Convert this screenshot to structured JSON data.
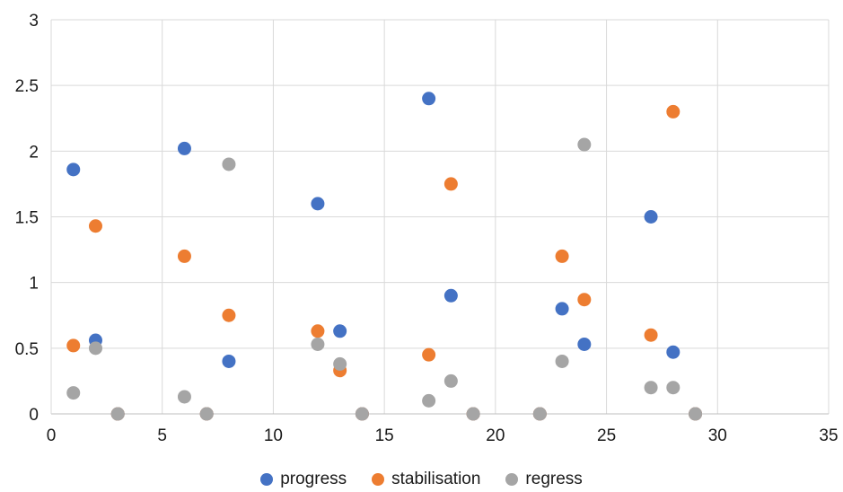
{
  "chart_data": {
    "type": "scatter",
    "title": "",
    "xlabel": "",
    "ylabel": "",
    "xlim": [
      0,
      35
    ],
    "ylim": [
      0,
      3
    ],
    "x_ticks": [
      "0",
      "5",
      "10",
      "15",
      "20",
      "25",
      "30",
      "35"
    ],
    "y_ticks": [
      "0",
      "0.5",
      "1",
      "1.5",
      "2",
      "2.5",
      "3"
    ],
    "x_tick_values": [
      0,
      5,
      10,
      15,
      20,
      25,
      30,
      35
    ],
    "y_tick_values": [
      0,
      0.5,
      1,
      1.5,
      2,
      2.5,
      3
    ],
    "grid": true,
    "legend_position": "bottom",
    "series": [
      {
        "name": "progress",
        "color": "#4472c4",
        "points": [
          [
            1,
            1.86
          ],
          [
            2,
            0.56
          ],
          [
            3,
            0
          ],
          [
            6,
            2.02
          ],
          [
            7,
            0
          ],
          [
            8,
            0.4
          ],
          [
            12,
            1.6
          ],
          [
            13,
            0.63
          ],
          [
            14,
            0
          ],
          [
            17,
            2.4
          ],
          [
            18,
            0.9
          ],
          [
            19,
            0
          ],
          [
            22,
            0
          ],
          [
            23,
            0.8
          ],
          [
            24,
            0.53
          ],
          [
            27,
            1.5
          ],
          [
            28,
            0.47
          ],
          [
            29,
            0
          ]
        ]
      },
      {
        "name": "stabilisation",
        "color": "#ed7d31",
        "points": [
          [
            1,
            0.52
          ],
          [
            2,
            1.43
          ],
          [
            3,
            0
          ],
          [
            6,
            1.2
          ],
          [
            7,
            0
          ],
          [
            8,
            0.75
          ],
          [
            12,
            0.63
          ],
          [
            13,
            0.33
          ],
          [
            14,
            0
          ],
          [
            17,
            0.45
          ],
          [
            18,
            1.75
          ],
          [
            19,
            0
          ],
          [
            22,
            0
          ],
          [
            23,
            1.2
          ],
          [
            24,
            0.87
          ],
          [
            27,
            0.6
          ],
          [
            28,
            2.3
          ],
          [
            29,
            0
          ]
        ]
      },
      {
        "name": "regress",
        "color": "#a5a5a5",
        "points": [
          [
            1,
            0.16
          ],
          [
            2,
            0.5
          ],
          [
            3,
            0
          ],
          [
            6,
            0.13
          ],
          [
            7,
            0
          ],
          [
            8,
            1.9
          ],
          [
            12,
            0.53
          ],
          [
            13,
            0.38
          ],
          [
            14,
            0
          ],
          [
            17,
            0.1
          ],
          [
            18,
            0.25
          ],
          [
            19,
            0
          ],
          [
            22,
            0
          ],
          [
            23,
            0.4
          ],
          [
            24,
            2.05
          ],
          [
            27,
            0.2
          ],
          [
            28,
            0.2
          ],
          [
            29,
            0
          ]
        ]
      }
    ]
  }
}
